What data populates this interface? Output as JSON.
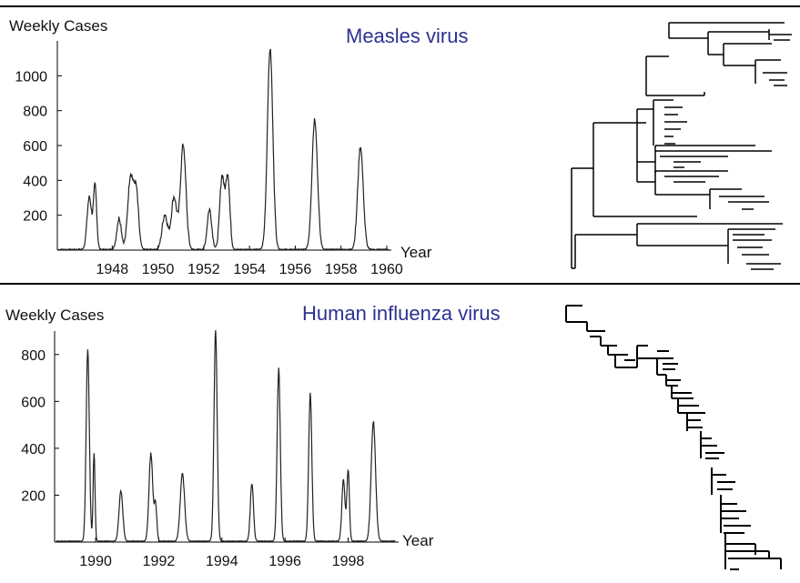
{
  "chart_data": [
    {
      "type": "line",
      "title": "Measles virus",
      "ylabel": "Weekly Cases",
      "xlabel": "Year",
      "xlim": [
        1945.6,
        1960.2
      ],
      "ylim": [
        0,
        1200
      ],
      "yticks": [
        200,
        400,
        600,
        800,
        1000
      ],
      "xticks": [
        1948,
        1950,
        1952,
        1954,
        1956,
        1958,
        1960
      ],
      "grid": false,
      "peaks": [
        {
          "x": 1947.0,
          "y": 300,
          "w": 0.1
        },
        {
          "x": 1947.25,
          "y": 360,
          "w": 0.07
        },
        {
          "x": 1948.3,
          "y": 180,
          "w": 0.1
        },
        {
          "x": 1948.8,
          "y": 420,
          "w": 0.12
        },
        {
          "x": 1949.05,
          "y": 320,
          "w": 0.1
        },
        {
          "x": 1950.3,
          "y": 200,
          "w": 0.12
        },
        {
          "x": 1950.7,
          "y": 300,
          "w": 0.12
        },
        {
          "x": 1951.1,
          "y": 600,
          "w": 0.12
        },
        {
          "x": 1952.25,
          "y": 230,
          "w": 0.1
        },
        {
          "x": 1952.8,
          "y": 420,
          "w": 0.1
        },
        {
          "x": 1953.05,
          "y": 420,
          "w": 0.09
        },
        {
          "x": 1954.9,
          "y": 1150,
          "w": 0.12
        },
        {
          "x": 1956.85,
          "y": 750,
          "w": 0.12
        },
        {
          "x": 1958.85,
          "y": 590,
          "w": 0.12
        }
      ]
    },
    {
      "type": "line",
      "title": "Human influenza virus",
      "ylabel": "Weekly Cases",
      "xlabel": "Year",
      "xlim": [
        1988.7,
        1999.6
      ],
      "ylim": [
        0,
        900
      ],
      "yticks": [
        200,
        400,
        600,
        800
      ],
      "xticks": [
        1990,
        1992,
        1994,
        1996,
        1998
      ],
      "grid": false,
      "peaks": [
        {
          "x": 1989.75,
          "y": 820,
          "w": 0.05
        },
        {
          "x": 1989.95,
          "y": 380,
          "w": 0.03
        },
        {
          "x": 1990.8,
          "y": 215,
          "w": 0.06
        },
        {
          "x": 1991.75,
          "y": 375,
          "w": 0.06
        },
        {
          "x": 1991.9,
          "y": 150,
          "w": 0.04
        },
        {
          "x": 1992.75,
          "y": 285,
          "w": 0.07
        },
        {
          "x": 1993.8,
          "y": 895,
          "w": 0.05
        },
        {
          "x": 1994.95,
          "y": 245,
          "w": 0.05
        },
        {
          "x": 1995.8,
          "y": 735,
          "w": 0.05
        },
        {
          "x": 1996.8,
          "y": 630,
          "w": 0.05
        },
        {
          "x": 1997.85,
          "y": 260,
          "w": 0.05
        },
        {
          "x": 1998.0,
          "y": 305,
          "w": 0.04
        },
        {
          "x": 1998.8,
          "y": 510,
          "w": 0.07
        }
      ]
    }
  ]
}
